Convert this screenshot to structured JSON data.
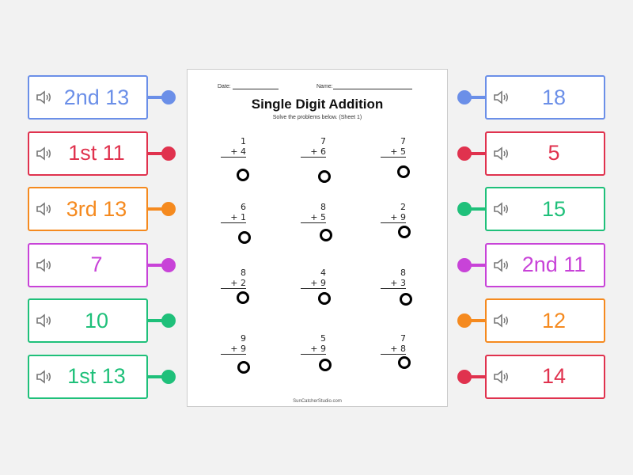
{
  "left_cards": [
    {
      "label": "2nd 13",
      "color": "#6b8fe8",
      "icon": "speaker-icon"
    },
    {
      "label": "1st 11",
      "color": "#e0324e",
      "icon": "speaker-icon"
    },
    {
      "label": "3rd 13",
      "color": "#f58a1f",
      "icon": "speaker-icon"
    },
    {
      "label": "7",
      "color": "#c843d8",
      "icon": "speaker-icon"
    },
    {
      "label": "10",
      "color": "#1fc07a",
      "icon": "speaker-icon"
    },
    {
      "label": "1st 13",
      "color": "#1fc07a",
      "icon": "speaker-icon"
    }
  ],
  "right_cards": [
    {
      "label": "18",
      "color": "#6b8fe8",
      "icon": "speaker-icon"
    },
    {
      "label": "5",
      "color": "#e0324e",
      "icon": "speaker-icon"
    },
    {
      "label": "15",
      "color": "#1fc07a",
      "icon": "speaker-icon"
    },
    {
      "label": "2nd 11",
      "color": "#c843d8",
      "icon": "speaker-icon"
    },
    {
      "label": "12",
      "color": "#f58a1f",
      "icon": "speaker-icon"
    },
    {
      "label": "14",
      "color": "#e0324e",
      "icon": "speaker-icon"
    }
  ],
  "worksheet": {
    "date_label": "Date:",
    "name_label": "Name:",
    "title": "Single Digit Addition",
    "subtitle": "Solve the problems below. (Sheet 1)",
    "footer": "SunCatcherStudio.com",
    "problems": [
      [
        "1",
        "+ 4"
      ],
      [
        "7",
        "+ 6"
      ],
      [
        "7",
        "+ 5"
      ],
      [
        "6",
        "+ 1"
      ],
      [
        "8",
        "+ 5"
      ],
      [
        "2",
        "+ 9"
      ],
      [
        "8",
        "+ 2"
      ],
      [
        "4",
        "+ 9"
      ],
      [
        "8",
        "+ 3"
      ],
      [
        "9",
        "+ 9"
      ],
      [
        "5",
        "+ 9"
      ],
      [
        "7",
        "+ 8"
      ]
    ]
  }
}
